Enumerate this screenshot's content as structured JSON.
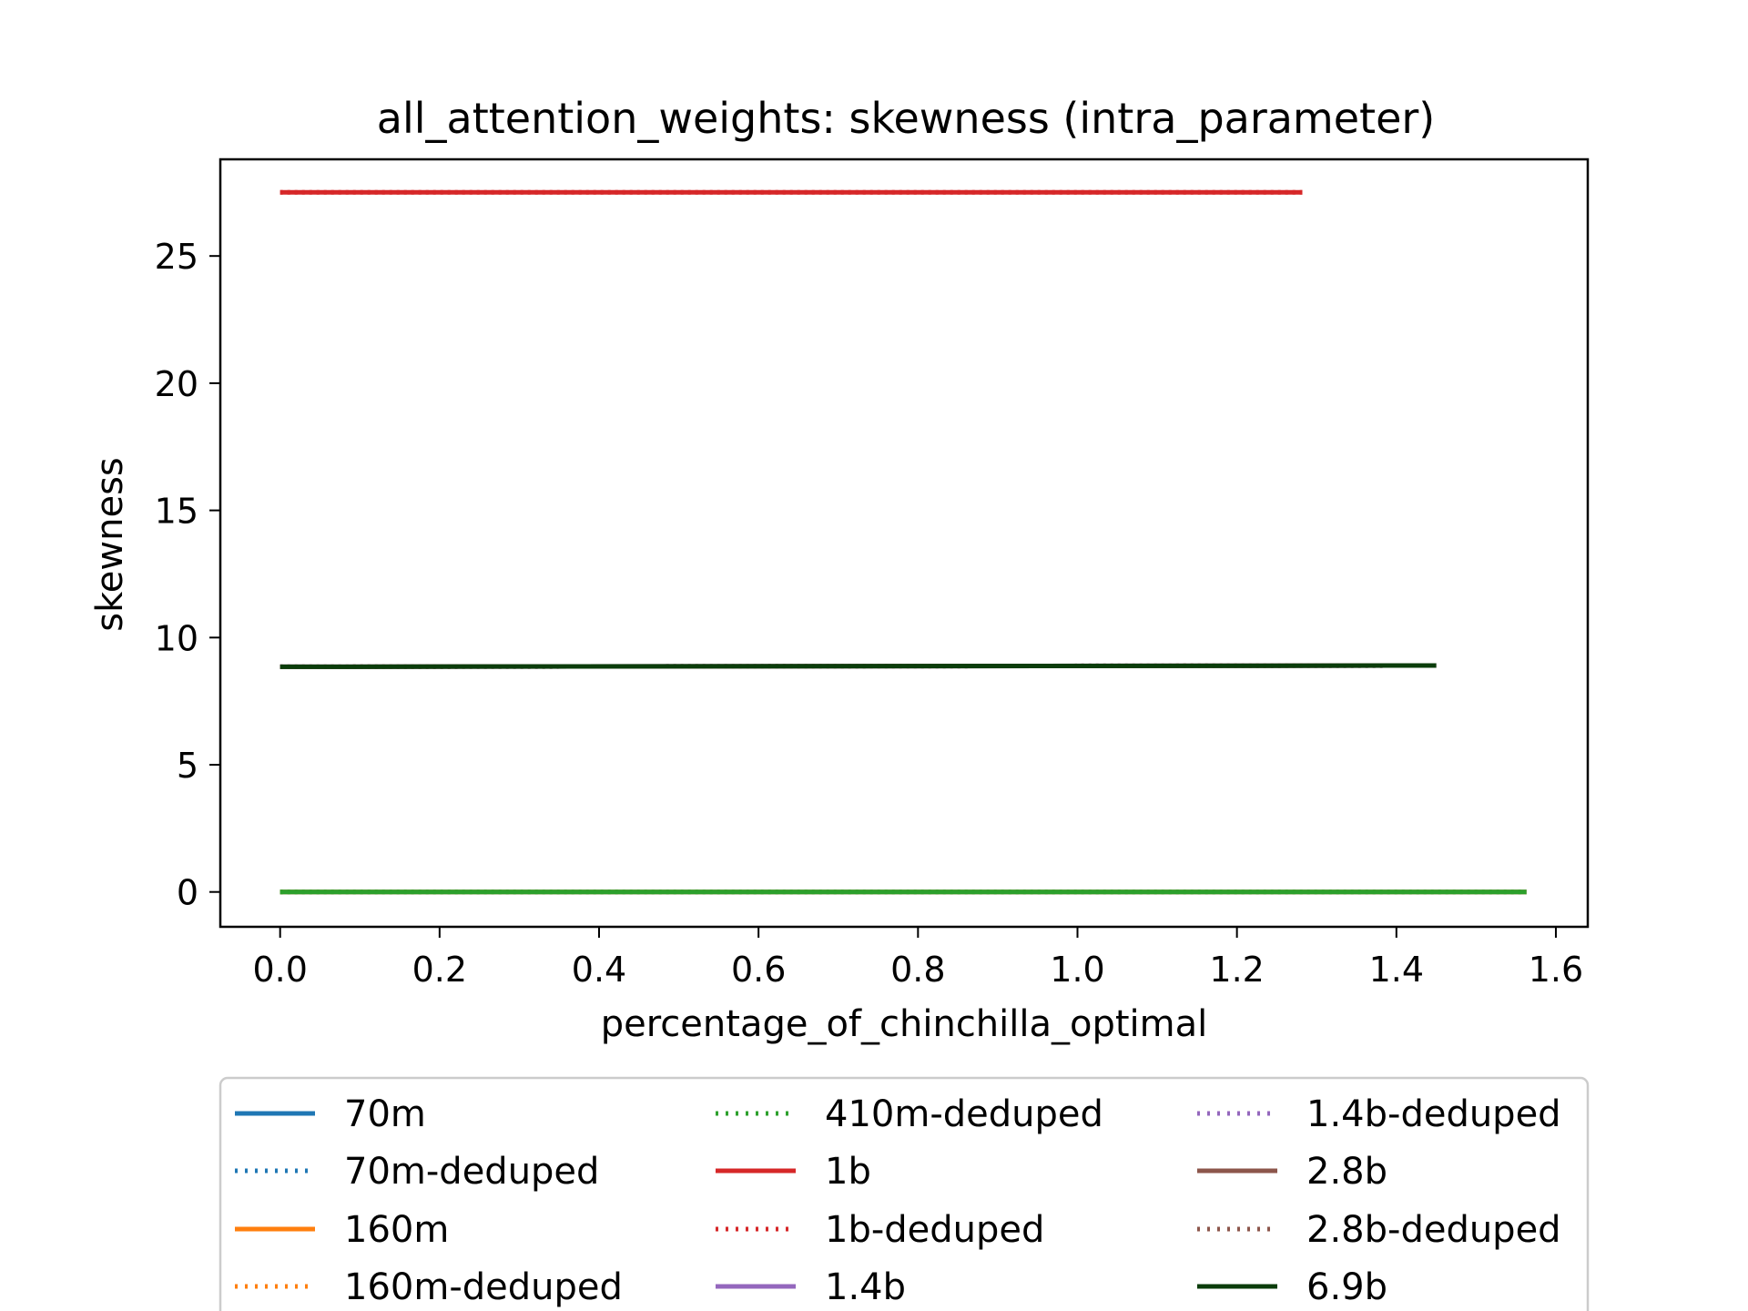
{
  "chart_data": {
    "type": "line",
    "title": "all_attention_weights: skewness (intra_parameter)",
    "xlabel": "percentage_of_chinchilla_optimal",
    "ylabel": "skewness",
    "xlim": [
      -0.075,
      1.64
    ],
    "ylim": [
      -1.37,
      28.8
    ],
    "xticks": [
      0.0,
      0.2,
      0.4,
      0.6,
      0.8,
      1.0,
      1.2,
      1.4,
      1.6
    ],
    "xtick_labels": [
      "0.0",
      "0.2",
      "0.4",
      "0.6",
      "0.8",
      "1.0",
      "1.2",
      "1.4",
      "1.6"
    ],
    "yticks": [
      0,
      5,
      10,
      15,
      20,
      25
    ],
    "ytick_labels": [
      "0",
      "5",
      "10",
      "15",
      "20",
      "25"
    ],
    "grid": false,
    "legend_position": "below",
    "series": [
      {
        "name": "70m",
        "color": "#1f77b4",
        "style": "solid",
        "x": [
          0.0,
          1.563
        ],
        "y": [
          0.0,
          0.0
        ]
      },
      {
        "name": "70m-deduped",
        "color": "#1f77b4",
        "style": "dotted",
        "x": [
          0.0,
          1.563
        ],
        "y": [
          0.0,
          0.0
        ]
      },
      {
        "name": "160m",
        "color": "#ff7f0e",
        "style": "solid",
        "x": [
          0.0,
          1.563
        ],
        "y": [
          0.0,
          0.0
        ]
      },
      {
        "name": "160m-deduped",
        "color": "#ff7f0e",
        "style": "dotted",
        "x": [
          0.0,
          1.563
        ],
        "y": [
          0.0,
          0.0
        ]
      },
      {
        "name": "410m-deduped",
        "color": "#2ca02c",
        "style": "dotted",
        "x": [
          0.0,
          1.563
        ],
        "y": [
          0.0,
          0.0
        ]
      },
      {
        "name": "1b",
        "color": "#d62728",
        "style": "solid",
        "x": [
          0.0,
          1.282
        ],
        "y": [
          27.5,
          27.5
        ]
      },
      {
        "name": "1b-deduped",
        "color": "#d62728",
        "style": "dotted",
        "x": [
          0.0,
          1.282
        ],
        "y": [
          27.5,
          27.5
        ]
      },
      {
        "name": "1.4b",
        "color": "#9467bd",
        "style": "solid",
        "x": [
          0.0,
          1.45
        ],
        "y": [
          8.85,
          8.9
        ]
      },
      {
        "name": "1.4b-deduped",
        "color": "#9467bd",
        "style": "dotted",
        "x": [
          0.0,
          1.45
        ],
        "y": [
          8.85,
          8.9
        ]
      },
      {
        "name": "2.8b",
        "color": "#8c564b",
        "style": "solid",
        "x": [
          0.0,
          1.45
        ],
        "y": [
          8.85,
          8.9
        ]
      },
      {
        "name": "2.8b-deduped",
        "color": "#8c564b",
        "style": "dotted",
        "x": [
          0.0,
          1.45
        ],
        "y": [
          8.85,
          8.9
        ]
      },
      {
        "name": "6.9b",
        "color": "#0b3d0b",
        "style": "solid",
        "x": [
          0.0,
          1.45
        ],
        "y": [
          8.85,
          8.9
        ]
      },
      {
        "name": "",
        "color": "#2ca02c",
        "style": "solid",
        "x": [
          0.0,
          1.563
        ],
        "y": [
          0.0,
          0.0
        ]
      }
    ]
  }
}
